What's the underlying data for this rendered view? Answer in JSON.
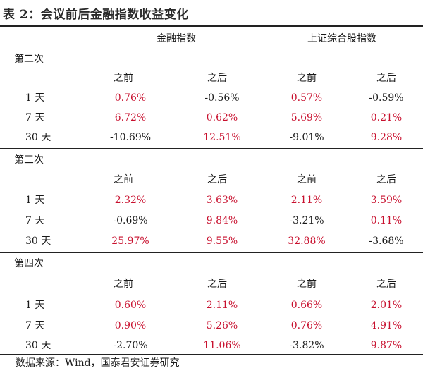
{
  "title": "表 2：会议前后金融指数收益变化",
  "columns": {
    "group1": "金融指数",
    "group2": "上证综合股指数",
    "before": "之前",
    "after": "之后"
  },
  "colors": {
    "positive": "#c8102e",
    "negative": "#1a1a1a"
  },
  "sections": [
    {
      "label": "第二次",
      "rows": [
        {
          "label": "1 天",
          "fin_before": "0.76%",
          "fin_after": "-0.56%",
          "sh_before": "0.57%",
          "sh_after": "-0.59%"
        },
        {
          "label": "7 天",
          "fin_before": "6.72%",
          "fin_after": "0.62%",
          "sh_before": "5.69%",
          "sh_after": "0.21%"
        },
        {
          "label": "30 天",
          "fin_before": "-10.69%",
          "fin_after": "12.51%",
          "sh_before": "-9.01%",
          "sh_after": "9.28%"
        }
      ]
    },
    {
      "label": "第三次",
      "rows": [
        {
          "label": "1 天",
          "fin_before": "2.32%",
          "fin_after": "3.63%",
          "sh_before": "2.11%",
          "sh_after": "3.59%"
        },
        {
          "label": "7 天",
          "fin_before": "-0.69%",
          "fin_after": "9.84%",
          "sh_before": "-3.21%",
          "sh_after": "0.11%"
        },
        {
          "label": "30 天",
          "fin_before": "25.97%",
          "fin_after": "9.55%",
          "sh_before": "32.88%",
          "sh_after": "-3.68%"
        }
      ]
    },
    {
      "label": "第四次",
      "rows": [
        {
          "label": "1 天",
          "fin_before": "0.60%",
          "fin_after": "2.11%",
          "sh_before": "0.66%",
          "sh_after": "2.01%"
        },
        {
          "label": "7 天",
          "fin_before": "0.90%",
          "fin_after": "5.26%",
          "sh_before": "0.76%",
          "sh_after": "4.91%"
        },
        {
          "label": "30 天",
          "fin_before": "-2.70%",
          "fin_after": "11.06%",
          "sh_before": "-3.82%",
          "sh_after": "9.87%"
        }
      ]
    }
  ],
  "source": "数据来源：Wind，国泰君安证券研究"
}
